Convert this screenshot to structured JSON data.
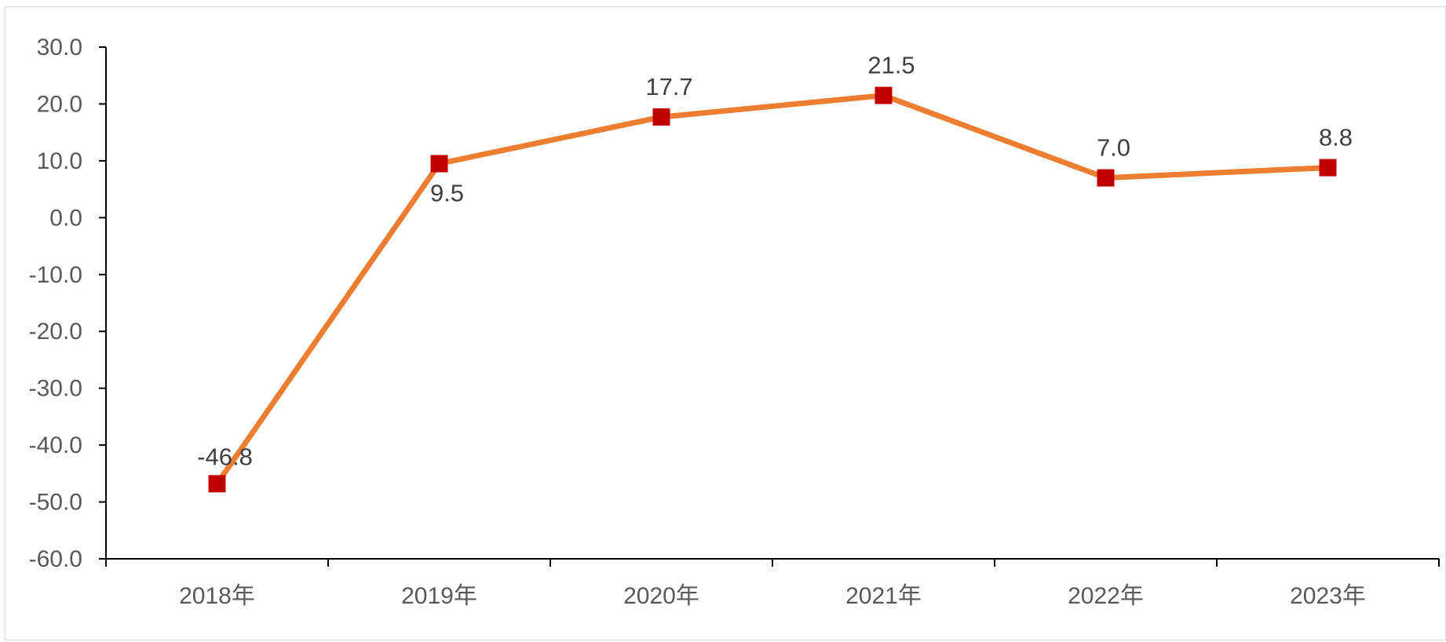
{
  "chart_data": {
    "type": "line",
    "categories": [
      "2018年",
      "2019年",
      "2020年",
      "2021年",
      "2022年",
      "2023年"
    ],
    "series": [
      {
        "values": [
          -46.8,
          9.5,
          17.7,
          21.5,
          7.0,
          8.8
        ]
      }
    ],
    "data_labels": [
      "-46.8",
      "9.5",
      "17.7",
      "21.5",
      "7.0",
      "8.8"
    ],
    "y_ticks": [
      "30.0",
      "20.0",
      "10.0",
      "0.0",
      "-10.0",
      "-20.0",
      "-30.0",
      "-40.0",
      "-50.0",
      "-60.0"
    ],
    "ylim": [
      -60,
      30
    ],
    "grid": false,
    "legend": "none",
    "colors": {
      "line": "#ed7d31",
      "marker": "#c00000",
      "axis": "#000000",
      "text": "#595959"
    }
  }
}
